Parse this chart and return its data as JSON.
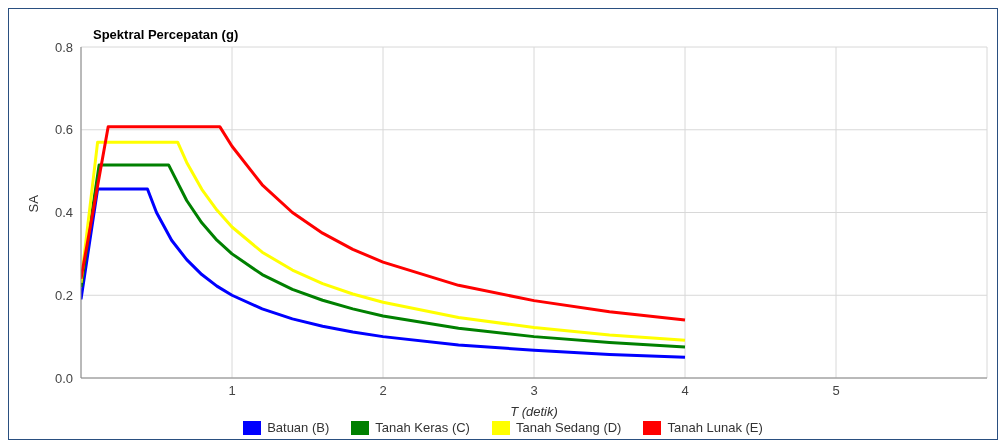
{
  "chart_data": {
    "type": "line",
    "title": "Spektral Percepatan (g)",
    "xlabel": "T (detik)",
    "ylabel": "SA",
    "xlim": [
      0,
      6
    ],
    "xticks": [
      1,
      2,
      3,
      4,
      5
    ],
    "ylim": [
      0,
      0.8
    ],
    "yticks": [
      {
        "value": 0,
        "label": "0.0"
      },
      0.2,
      0.4,
      0.6,
      0.8
    ],
    "grid": true,
    "legend": "bottom",
    "marker": "none",
    "line_style": "solid",
    "series": [
      {
        "name": "Batuan (B)",
        "color": "#0000ff",
        "x": [
          0,
          0.11,
          0.44,
          0.5,
          0.6,
          0.7,
          0.8,
          0.9,
          1,
          1.2,
          1.4,
          1.6,
          1.8,
          2,
          2.5,
          3,
          3.5,
          4
        ],
        "values": [
          0.19,
          0.457,
          0.457,
          0.4,
          0.333,
          0.286,
          0.25,
          0.222,
          0.2,
          0.167,
          0.143,
          0.125,
          0.111,
          0.1,
          0.08,
          0.067,
          0.057,
          0.05
        ]
      },
      {
        "name": "Tanah Keras (C)",
        "color": "#008000",
        "x": [
          0,
          0.12,
          0.58,
          0.7,
          0.8,
          0.9,
          1,
          1.2,
          1.4,
          1.6,
          1.8,
          2,
          2.5,
          3,
          3.5,
          4
        ],
        "values": [
          0.22,
          0.515,
          0.515,
          0.429,
          0.375,
          0.333,
          0.3,
          0.25,
          0.214,
          0.188,
          0.167,
          0.15,
          0.12,
          0.1,
          0.086,
          0.075
        ]
      },
      {
        "name": "Tanah Sedang (D)",
        "color": "#ffff00",
        "x": [
          0,
          0.11,
          0.64,
          0.7,
          0.8,
          0.9,
          1,
          1.2,
          1.4,
          1.6,
          1.8,
          2,
          2.5,
          3,
          3.5,
          4
        ],
        "values": [
          0.23,
          0.57,
          0.57,
          0.521,
          0.456,
          0.406,
          0.365,
          0.304,
          0.261,
          0.228,
          0.203,
          0.183,
          0.146,
          0.122,
          0.104,
          0.091
        ]
      },
      {
        "name": "Tanah Lunak (E)",
        "color": "#ff0000",
        "x": [
          0,
          0.18,
          0.92,
          1,
          1.2,
          1.4,
          1.6,
          1.8,
          2,
          2.5,
          3,
          3.5,
          4
        ],
        "values": [
          0.24,
          0.607,
          0.607,
          0.56,
          0.467,
          0.4,
          0.35,
          0.311,
          0.28,
          0.224,
          0.187,
          0.16,
          0.14
        ]
      }
    ]
  }
}
